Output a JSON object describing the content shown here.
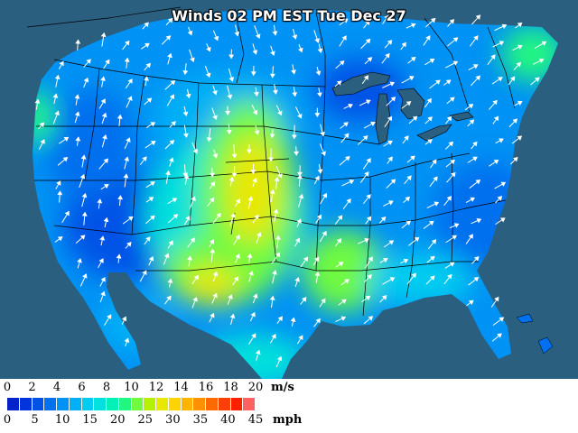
{
  "title": "Winds 02 PM EST Tue Dec 27",
  "legend": {
    "ms_unit": "m/s",
    "mph_unit": "mph",
    "ms_ticks": [
      "0",
      "2",
      "4",
      "6",
      "8",
      "10",
      "12",
      "14",
      "16",
      "18",
      "20"
    ],
    "mph_ticks": [
      "0",
      "5",
      "10",
      "15",
      "20",
      "25",
      "30",
      "35",
      "40",
      "45"
    ],
    "scale_colors": [
      "#0022c8",
      "#0034dc",
      "#0052e6",
      "#0070ee",
      "#0092f4",
      "#00b0f6",
      "#00ccf0",
      "#00e0dc",
      "#00f0b8",
      "#20f880",
      "#70fa40",
      "#b4f000",
      "#e8e800",
      "#ffd400",
      "#ffb400",
      "#ff9000",
      "#ff6a00",
      "#ff4000",
      "#ff2000",
      "#ff6060"
    ]
  },
  "colors": {
    "ocean": "#2a5f80",
    "canada_land": "#0070ee",
    "border_lines": "#000000",
    "wind_arrows": "#ffffff"
  }
}
